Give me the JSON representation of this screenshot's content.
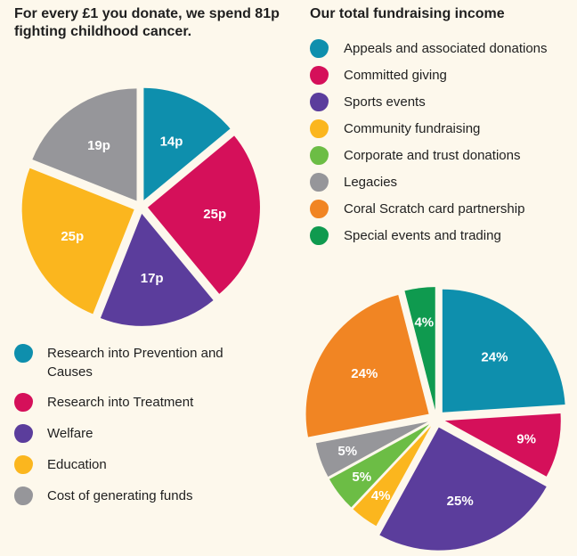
{
  "chart_data": [
    {
      "type": "pie",
      "title": "For every £1 you donate, we spend 81p fighting childhood cancer.",
      "legend_position": "below",
      "slices": [
        {
          "name": "Research into Prevention and Causes",
          "value": 14,
          "label": "14p",
          "color": "#0e8fad"
        },
        {
          "name": "Research into Treatment",
          "value": 25,
          "label": "25p",
          "color": "#d5105a"
        },
        {
          "name": "Welfare",
          "value": 17,
          "label": "17p",
          "color": "#5b3d9c"
        },
        {
          "name": "Education",
          "value": 25,
          "label": "25p",
          "color": "#fbb61e"
        },
        {
          "name": "Cost of generating funds",
          "value": 19,
          "label": "19p",
          "color": "#96969a"
        }
      ]
    },
    {
      "type": "pie",
      "title": "Our total fundraising income",
      "legend_position": "above",
      "slices": [
        {
          "name": "Appeals and associated donations",
          "value": 24,
          "label": "24%",
          "color": "#0e8fad"
        },
        {
          "name": "Committed giving",
          "value": 9,
          "label": "9%",
          "color": "#d5105a"
        },
        {
          "name": "Sports events",
          "value": 25,
          "label": "25%",
          "color": "#5b3d9c"
        },
        {
          "name": "Community fundraising",
          "value": 4,
          "label": "4%",
          "color": "#fbb61e"
        },
        {
          "name": "Corporate and trust donations",
          "value": 5,
          "label": "5%",
          "color": "#6cbd45"
        },
        {
          "name": "Legacies",
          "value": 5,
          "label": "5%",
          "color": "#96969a"
        },
        {
          "name": "Coral Scratch card partnership",
          "value": 24,
          "label": "24%",
          "color": "#f18523"
        },
        {
          "name": "Special events and trading",
          "value": 4,
          "label": "4%",
          "color": "#0f9a4f"
        }
      ]
    }
  ]
}
